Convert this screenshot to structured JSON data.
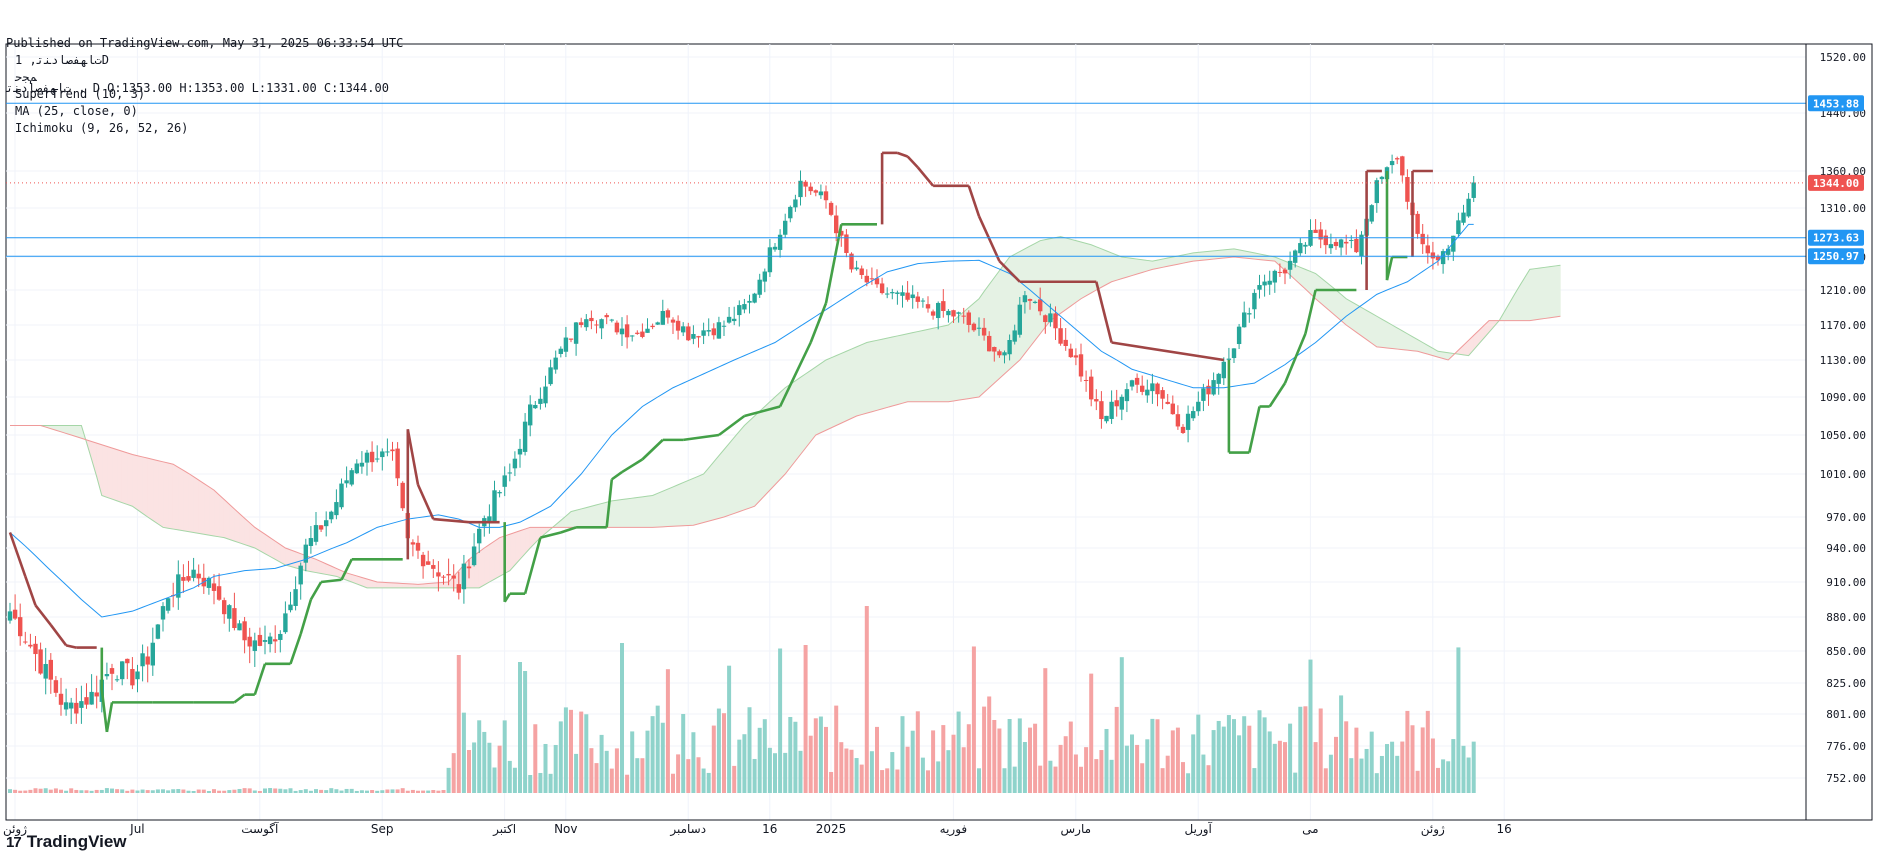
{
  "header": {
    "published": "Published on TradingView.com, May 31, 2025 06:33:54 UTC",
    "symbol_line": "ﺕﺎﻬﻔﺻﺎﺩﻨﺗ , D O:1353.00 H:1353.00 L:1331.00 C:1344.00"
  },
  "legend": {
    "symbol": "ﺕﺎﻬﻔﺻﺎﺩﻨﺗ, 1D",
    "sub": "ﻢﺠﺣ",
    "supertrend": "SuperTrend (10, 3)",
    "ma": "MA (25, close, 0)",
    "ichimoku": "Ichimoku (9, 26, 52, 26)"
  },
  "brand": {
    "logo": "17",
    "name": "TradingView"
  },
  "colors": {
    "up": "#26a69a",
    "down": "#ef5350",
    "vol_up": "#8fd3cb",
    "vol_down": "#f5a3a3",
    "supertrend_up": "#43a047",
    "supertrend_down": "#a04545",
    "ma": "#2196f3",
    "hline": "#2196f3",
    "last_price": "#ef5350",
    "cloud_green": "#e5f2e4",
    "cloud_red": "#fbe3e3"
  },
  "chart_data": {
    "type": "candlestick",
    "timeframe": "1D",
    "y_range": [
      730,
      1530
    ],
    "y_ticks": [
      "1520.00",
      "1440.00",
      "1360.00",
      "1310.00",
      "1250.00",
      "1210.00",
      "1170.00",
      "1130.00",
      "1090.00",
      "1050.00",
      "1010.00",
      "970.00",
      "940.00",
      "910.00",
      "880.00",
      "850.00",
      "825.00",
      "801.00",
      "776.00",
      "752.00"
    ],
    "y_tick_values": [
      1520,
      1440,
      1360,
      1310,
      1250,
      1210,
      1170,
      1130,
      1090,
      1050,
      1010,
      970,
      940,
      910,
      880,
      850,
      825,
      801,
      776,
      752
    ],
    "x_labels": [
      "ژوئن",
      "Jul",
      "آگوست",
      "Sep",
      "اکتبر",
      "Nov",
      "دسامبر",
      "16",
      "2025",
      "فوریه",
      "مارس",
      "آوریل",
      "می",
      "ژوئن",
      "16"
    ],
    "horizontal_lines": [
      {
        "value": 1453.88,
        "label": "1453.88"
      },
      {
        "value": 1273.63,
        "label": "1273.63"
      },
      {
        "value": 1250.97,
        "label": "1250.97"
      }
    ],
    "last_price": {
      "value": 1344.0,
      "label": "1344.00"
    },
    "ohlc_last": {
      "open": 1353.0,
      "high": 1353.0,
      "low": 1331.0,
      "close": 1344.0
    },
    "price_anchors": [
      [
        0,
        885
      ],
      [
        6,
        840
      ],
      [
        11,
        805
      ],
      [
        16,
        815
      ],
      [
        20,
        838
      ],
      [
        24,
        830
      ],
      [
        27,
        845
      ],
      [
        31,
        900
      ],
      [
        36,
        920
      ],
      [
        40,
        905
      ],
      [
        46,
        860
      ],
      [
        50,
        855
      ],
      [
        53,
        870
      ],
      [
        58,
        940
      ],
      [
        63,
        975
      ],
      [
        68,
        1025
      ],
      [
        72,
        1030
      ],
      [
        75,
        1025
      ],
      [
        78,
        945
      ],
      [
        84,
        920
      ],
      [
        88,
        905
      ],
      [
        93,
        970
      ],
      [
        98,
        1010
      ],
      [
        102,
        1075
      ],
      [
        108,
        1140
      ],
      [
        113,
        1185
      ],
      [
        118,
        1170
      ],
      [
        123,
        1160
      ],
      [
        129,
        1185
      ],
      [
        133,
        1160
      ],
      [
        140,
        1170
      ],
      [
        145,
        1195
      ],
      [
        150,
        1270
      ],
      [
        155,
        1345
      ],
      [
        160,
        1320
      ],
      [
        165,
        1235
      ],
      [
        170,
        1210
      ],
      [
        175,
        1200
      ],
      [
        180,
        1190
      ],
      [
        186,
        1180
      ],
      [
        190,
        1160
      ],
      [
        195,
        1130
      ],
      [
        199,
        1210
      ],
      [
        204,
        1175
      ],
      [
        209,
        1130
      ],
      [
        214,
        1065
      ],
      [
        219,
        1100
      ],
      [
        224,
        1105
      ],
      [
        230,
        1060
      ],
      [
        235,
        1100
      ],
      [
        240,
        1150
      ],
      [
        245,
        1220
      ],
      [
        250,
        1235
      ],
      [
        255,
        1275
      ],
      [
        260,
        1270
      ],
      [
        264,
        1260
      ],
      [
        268,
        1340
      ],
      [
        272,
        1380
      ],
      [
        276,
        1270
      ],
      [
        280,
        1245
      ],
      [
        285,
        1300
      ],
      [
        287,
        1344
      ]
    ],
    "supertrend": [
      [
        0,
        "d",
        955
      ],
      [
        3,
        "d",
        915
      ],
      [
        5,
        "d",
        890
      ],
      [
        8,
        "d",
        873
      ],
      [
        11,
        "d",
        855
      ],
      [
        13,
        "d",
        853
      ],
      [
        17,
        "d",
        853
      ],
      [
        18,
        "u",
        820
      ],
      [
        19,
        "u",
        787
      ],
      [
        20,
        "u",
        810
      ],
      [
        28,
        "u",
        810
      ],
      [
        36,
        "u",
        810
      ],
      [
        40,
        "u",
        810
      ],
      [
        44,
        "u",
        810
      ],
      [
        46,
        "u",
        816
      ],
      [
        48,
        "u",
        816
      ],
      [
        50,
        "u",
        840
      ],
      [
        55,
        "u",
        840
      ],
      [
        57,
        "u",
        865
      ],
      [
        59,
        "u",
        895
      ],
      [
        61,
        "u",
        910
      ],
      [
        65,
        "u",
        912
      ],
      [
        67,
        "u",
        930
      ],
      [
        77,
        "u",
        930
      ],
      [
        78,
        "d",
        1056
      ],
      [
        80,
        "d",
        1000
      ],
      [
        83,
        "d",
        968
      ],
      [
        90,
        "d",
        965
      ],
      [
        96,
        "d",
        965
      ],
      [
        97,
        "u",
        893
      ],
      [
        98,
        "u",
        900
      ],
      [
        101,
        "u",
        900
      ],
      [
        104,
        "u",
        950
      ],
      [
        108,
        "u",
        955
      ],
      [
        111,
        "u",
        960
      ],
      [
        117,
        "u",
        960
      ],
      [
        118,
        "u",
        1005
      ],
      [
        120,
        "u",
        1012
      ],
      [
        124,
        "u",
        1025
      ],
      [
        128,
        "u",
        1045
      ],
      [
        132,
        "u",
        1045
      ],
      [
        139,
        "u",
        1050
      ],
      [
        144,
        "u",
        1070
      ],
      [
        151,
        "u",
        1080
      ],
      [
        157,
        "u",
        1150
      ],
      [
        160,
        "u",
        1195
      ],
      [
        163,
        "u",
        1290
      ],
      [
        170,
        "u",
        1290
      ],
      [
        171,
        "d",
        1385
      ],
      [
        174,
        "d",
        1385
      ],
      [
        176,
        "d",
        1380
      ],
      [
        178,
        "d",
        1365
      ],
      [
        181,
        "d",
        1340
      ],
      [
        188,
        "d",
        1340
      ],
      [
        190,
        "d",
        1300
      ],
      [
        194,
        "d",
        1245
      ],
      [
        198,
        "d",
        1220
      ],
      [
        213,
        "d",
        1220
      ],
      [
        216,
        "d",
        1150
      ],
      [
        238,
        "d",
        1130
      ],
      [
        239,
        "u",
        1032
      ],
      [
        243,
        "u",
        1032
      ],
      [
        245,
        "u",
        1080
      ],
      [
        247,
        "u",
        1080
      ],
      [
        250,
        "u",
        1105
      ],
      [
        254,
        "u",
        1160
      ],
      [
        256,
        "u",
        1210
      ],
      [
        264,
        "u",
        1210
      ],
      [
        266,
        "d",
        1360
      ],
      [
        269,
        "d",
        1360
      ],
      [
        270,
        "u",
        1222
      ],
      [
        271,
        "u",
        1250
      ],
      [
        274,
        "u",
        1250
      ],
      [
        275,
        "d",
        1360
      ],
      [
        279,
        "d",
        1360
      ]
    ],
    "moving_average": [
      [
        0,
        955
      ],
      [
        8,
        920
      ],
      [
        14,
        895
      ],
      [
        18,
        880
      ],
      [
        24,
        885
      ],
      [
        30,
        895
      ],
      [
        36,
        905
      ],
      [
        40,
        915
      ],
      [
        46,
        920
      ],
      [
        52,
        922
      ],
      [
        58,
        930
      ],
      [
        66,
        945
      ],
      [
        72,
        960
      ],
      [
        78,
        968
      ],
      [
        84,
        972
      ],
      [
        88,
        968
      ],
      [
        92,
        960
      ],
      [
        96,
        960
      ],
      [
        100,
        965
      ],
      [
        106,
        980
      ],
      [
        112,
        1010
      ],
      [
        118,
        1050
      ],
      [
        124,
        1080
      ],
      [
        130,
        1100
      ],
      [
        136,
        1115
      ],
      [
        142,
        1130
      ],
      [
        150,
        1150
      ],
      [
        158,
        1180
      ],
      [
        166,
        1210
      ],
      [
        172,
        1232
      ],
      [
        178,
        1242
      ],
      [
        184,
        1245
      ],
      [
        190,
        1246
      ],
      [
        196,
        1230
      ],
      [
        202,
        1200
      ],
      [
        208,
        1170
      ],
      [
        214,
        1140
      ],
      [
        220,
        1120
      ],
      [
        226,
        1110
      ],
      [
        232,
        1100
      ],
      [
        238,
        1100
      ],
      [
        244,
        1105
      ],
      [
        250,
        1125
      ],
      [
        256,
        1150
      ],
      [
        262,
        1180
      ],
      [
        268,
        1205
      ],
      [
        274,
        1220
      ],
      [
        280,
        1245
      ],
      [
        286,
        1290
      ]
    ],
    "ichimoku_span_a": [
      [
        0,
        1060
      ],
      [
        10,
        1060
      ],
      [
        14,
        1060
      ],
      [
        18,
        990
      ],
      [
        24,
        980
      ],
      [
        30,
        960
      ],
      [
        36,
        955
      ],
      [
        42,
        950
      ],
      [
        48,
        940
      ],
      [
        54,
        925
      ],
      [
        58,
        920
      ],
      [
        64,
        915
      ],
      [
        70,
        905
      ],
      [
        76,
        905
      ],
      [
        84,
        905
      ],
      [
        92,
        905
      ],
      [
        98,
        920
      ],
      [
        104,
        950
      ],
      [
        110,
        975
      ],
      [
        118,
        985
      ],
      [
        126,
        990
      ],
      [
        136,
        1010
      ],
      [
        144,
        1060
      ],
      [
        152,
        1100
      ],
      [
        160,
        1130
      ],
      [
        168,
        1150
      ],
      [
        176,
        1160
      ],
      [
        184,
        1170
      ],
      [
        190,
        1200
      ],
      [
        196,
        1250
      ],
      [
        202,
        1270
      ],
      [
        206,
        1275
      ],
      [
        212,
        1265
      ],
      [
        218,
        1250
      ],
      [
        224,
        1245
      ],
      [
        232,
        1255
      ],
      [
        240,
        1260
      ],
      [
        248,
        1250
      ],
      [
        256,
        1230
      ],
      [
        262,
        1200
      ],
      [
        268,
        1180
      ],
      [
        274,
        1160
      ],
      [
        280,
        1140
      ],
      [
        286,
        1135
      ],
      [
        292,
        1175
      ],
      [
        298,
        1235
      ],
      [
        304,
        1240
      ]
    ],
    "ichimoku_span_b": [
      [
        0,
        1060
      ],
      [
        6,
        1060
      ],
      [
        12,
        1050
      ],
      [
        18,
        1040
      ],
      [
        24,
        1030
      ],
      [
        32,
        1020
      ],
      [
        40,
        995
      ],
      [
        48,
        960
      ],
      [
        54,
        940
      ],
      [
        60,
        930
      ],
      [
        66,
        918
      ],
      [
        72,
        910
      ],
      [
        80,
        908
      ],
      [
        86,
        910
      ],
      [
        90,
        930
      ],
      [
        96,
        950
      ],
      [
        102,
        960
      ],
      [
        110,
        960
      ],
      [
        118,
        960
      ],
      [
        126,
        960
      ],
      [
        134,
        962
      ],
      [
        140,
        970
      ],
      [
        146,
        980
      ],
      [
        152,
        1010
      ],
      [
        158,
        1050
      ],
      [
        166,
        1070
      ],
      [
        176,
        1085
      ],
      [
        184,
        1085
      ],
      [
        190,
        1090
      ],
      [
        198,
        1130
      ],
      [
        204,
        1175
      ],
      [
        210,
        1200
      ],
      [
        216,
        1220
      ],
      [
        224,
        1235
      ],
      [
        232,
        1245
      ],
      [
        240,
        1250
      ],
      [
        248,
        1245
      ],
      [
        256,
        1200
      ],
      [
        262,
        1170
      ],
      [
        268,
        1145
      ],
      [
        276,
        1140
      ],
      [
        282,
        1130
      ],
      [
        290,
        1175
      ],
      [
        298,
        1175
      ],
      [
        304,
        1180
      ]
    ]
  }
}
